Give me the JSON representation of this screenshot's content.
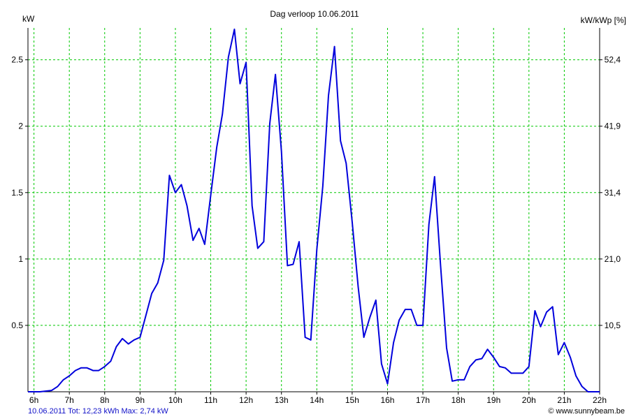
{
  "chart_data": {
    "type": "line",
    "title": "Dag  verloop 10.06.2011",
    "ylabel_left": "kW",
    "ylabel_right": "kW/kWp [%]",
    "xlim": [
      5.83,
      22.0
    ],
    "ylim": [
      0,
      2.74
    ],
    "x_ticks": [
      {
        "x": 6,
        "label": "6h"
      },
      {
        "x": 7,
        "label": "7h"
      },
      {
        "x": 8,
        "label": "8h"
      },
      {
        "x": 9,
        "label": "9h"
      },
      {
        "x": 10,
        "label": "10h"
      },
      {
        "x": 11,
        "label": "11h"
      },
      {
        "x": 12,
        "label": "12h"
      },
      {
        "x": 13,
        "label": "13h"
      },
      {
        "x": 14,
        "label": "14h"
      },
      {
        "x": 15,
        "label": "15h"
      },
      {
        "x": 16,
        "label": "16h"
      },
      {
        "x": 17,
        "label": "17h"
      },
      {
        "x": 18,
        "label": "18h"
      },
      {
        "x": 19,
        "label": "19h"
      },
      {
        "x": 20,
        "label": "20h"
      },
      {
        "x": 21,
        "label": "21h"
      },
      {
        "x": 22,
        "label": "22h"
      }
    ],
    "y_ticks_left": [
      {
        "y": 0.5,
        "label": "0.5"
      },
      {
        "y": 1.0,
        "label": "1"
      },
      {
        "y": 1.5,
        "label": "1.5"
      },
      {
        "y": 2.0,
        "label": "2"
      },
      {
        "y": 2.5,
        "label": "2.5"
      }
    ],
    "y_ticks_right": [
      {
        "y": 0.5,
        "label": "10,5"
      },
      {
        "y": 1.0,
        "label": "21,0"
      },
      {
        "y": 1.5,
        "label": "31,4"
      },
      {
        "y": 2.0,
        "label": "41,9"
      },
      {
        "y": 2.5,
        "label": "52,4"
      }
    ],
    "grid": true,
    "grid_color": "#00c800",
    "line_color": "#0000dc",
    "series": [
      {
        "x": [
          5.83,
          6.17,
          6.5,
          6.67,
          6.83,
          7.0,
          7.17,
          7.33,
          7.5,
          7.67,
          7.83,
          8.0,
          8.17,
          8.33,
          8.5,
          8.67,
          8.83,
          9.0,
          9.17,
          9.33,
          9.5,
          9.67,
          9.83,
          10.0,
          10.17,
          10.33,
          10.5,
          10.67,
          10.83,
          11.0,
          11.17,
          11.33,
          11.5,
          11.67,
          11.83,
          12.0,
          12.17,
          12.33,
          12.5,
          12.67,
          12.83,
          13.0,
          13.17,
          13.33,
          13.5,
          13.67,
          13.83,
          14.0,
          14.17,
          14.33,
          14.5,
          14.67,
          14.83,
          15.0,
          15.17,
          15.33,
          15.5,
          15.67,
          15.83,
          16.0,
          16.17,
          16.33,
          16.5,
          16.67,
          16.83,
          17.0,
          17.17,
          17.33,
          17.5,
          17.67,
          17.83,
          18.0,
          18.17,
          18.33,
          18.5,
          18.67,
          18.83,
          19.0,
          19.17,
          19.33,
          19.5,
          19.67,
          19.83,
          20.0,
          20.17,
          20.33,
          20.5,
          20.67,
          20.83,
          21.0,
          21.17,
          21.33,
          21.5,
          21.67,
          21.83,
          22.0
        ],
        "y": [
          0.0,
          0.0,
          0.01,
          0.04,
          0.09,
          0.12,
          0.16,
          0.18,
          0.18,
          0.16,
          0.16,
          0.19,
          0.23,
          0.34,
          0.4,
          0.36,
          0.39,
          0.41,
          0.58,
          0.74,
          0.82,
          0.99,
          1.63,
          1.5,
          1.56,
          1.4,
          1.14,
          1.23,
          1.11,
          1.48,
          1.84,
          2.09,
          2.52,
          2.73,
          2.32,
          2.48,
          1.4,
          1.08,
          1.13,
          2.02,
          2.39,
          1.81,
          0.95,
          0.96,
          1.13,
          0.41,
          0.39,
          1.07,
          1.55,
          2.23,
          2.6,
          1.89,
          1.72,
          1.28,
          0.79,
          0.41,
          0.56,
          0.69,
          0.21,
          0.06,
          0.37,
          0.54,
          0.62,
          0.62,
          0.5,
          0.5,
          1.26,
          1.62,
          0.95,
          0.33,
          0.08,
          0.09,
          0.09,
          0.19,
          0.24,
          0.25,
          0.32,
          0.26,
          0.19,
          0.18,
          0.14,
          0.14,
          0.14,
          0.19,
          0.61,
          0.49,
          0.6,
          0.64,
          0.28,
          0.37,
          0.26,
          0.12,
          0.04,
          0.0,
          0.0,
          0.0
        ]
      }
    ]
  },
  "footer": {
    "left": "10.06.2011 Tot: 12,23 kWh Max: 2,74 kW",
    "right": "© www.sunnybeam.be"
  }
}
